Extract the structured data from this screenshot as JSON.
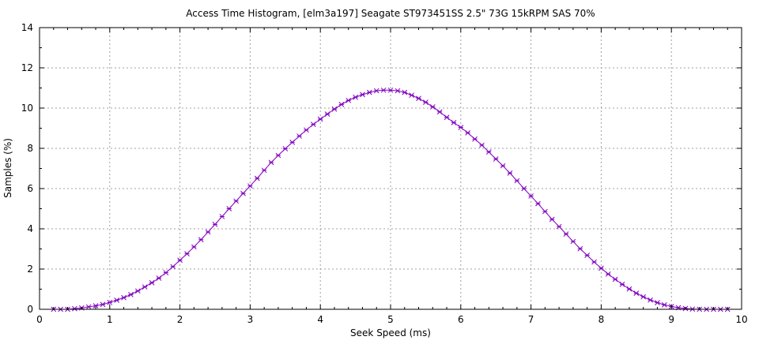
{
  "chart_data": {
    "type": "line",
    "title": "Access Time Histogram, [elm3a197] Seagate ST973451SS 2.5\" 73G 15kRPM SAS 70%",
    "xlabel": "Seek Speed (ms)",
    "ylabel": "Samples (%)",
    "xlim": [
      0,
      10
    ],
    "ylim": [
      0,
      14
    ],
    "xticks": [
      "0",
      "1",
      "2",
      "3",
      "4",
      "5",
      "6",
      "7",
      "8",
      "9",
      "10"
    ],
    "yticks": [
      "0",
      "2",
      "4",
      "6",
      "8",
      "10",
      "12",
      "14"
    ],
    "grid": true,
    "legend": "none",
    "marker": "plus-cross",
    "colors": {
      "series": "#8000c0",
      "grid": "#a0a0a0",
      "frame": "#000000"
    },
    "series": [
      {
        "x": [
          0.2,
          0.3,
          0.4,
          0.5,
          0.6,
          0.7,
          0.8,
          0.9,
          1.0,
          1.1,
          1.2,
          1.3,
          1.4,
          1.5,
          1.6,
          1.7,
          1.8,
          1.9,
          2.0,
          2.1,
          2.2,
          2.3,
          2.4,
          2.5,
          2.6,
          2.7,
          2.8,
          2.9,
          3.0,
          3.1,
          3.2,
          3.3,
          3.4,
          3.5,
          3.6,
          3.7,
          3.8,
          3.9,
          4.0,
          4.1,
          4.2,
          4.3,
          4.4,
          4.5,
          4.6,
          4.7,
          4.8,
          4.9,
          5.0,
          5.1,
          5.2,
          5.3,
          5.4,
          5.5,
          5.6,
          5.7,
          5.8,
          5.9,
          6.0,
          6.1,
          6.2,
          6.3,
          6.4,
          6.5,
          6.6,
          6.7,
          6.8,
          6.9,
          7.0,
          7.1,
          7.2,
          7.3,
          7.4,
          7.5,
          7.6,
          7.7,
          7.8,
          7.9,
          8.0,
          8.1,
          8.2,
          8.3,
          8.4,
          8.5,
          8.6,
          8.7,
          8.8,
          8.9,
          9.0,
          9.1,
          9.2,
          9.3,
          9.4,
          9.5,
          9.6,
          9.7,
          9.8
        ],
        "y": [
          0.0,
          0.0,
          0.0,
          0.03,
          0.07,
          0.12,
          0.17,
          0.24,
          0.34,
          0.45,
          0.58,
          0.73,
          0.91,
          1.11,
          1.32,
          1.55,
          1.82,
          2.12,
          2.44,
          2.76,
          3.1,
          3.46,
          3.84,
          4.22,
          4.61,
          5.0,
          5.38,
          5.76,
          6.13,
          6.51,
          6.91,
          7.3,
          7.65,
          7.98,
          8.3,
          8.61,
          8.91,
          9.19,
          9.45,
          9.7,
          9.95,
          10.18,
          10.38,
          10.54,
          10.67,
          10.78,
          10.86,
          10.89,
          10.89,
          10.86,
          10.78,
          10.64,
          10.48,
          10.29,
          10.06,
          9.81,
          9.54,
          9.28,
          9.04,
          8.77,
          8.46,
          8.16,
          7.82,
          7.47,
          7.13,
          6.77,
          6.39,
          6.0,
          5.63,
          5.25,
          4.86,
          4.47,
          4.11,
          3.74,
          3.37,
          3.01,
          2.68,
          2.35,
          2.04,
          1.75,
          1.49,
          1.24,
          1.01,
          0.8,
          0.62,
          0.46,
          0.33,
          0.22,
          0.14,
          0.08,
          0.04,
          0.01,
          0.0,
          0.0,
          0.0,
          0.0,
          0.0
        ]
      }
    ]
  }
}
